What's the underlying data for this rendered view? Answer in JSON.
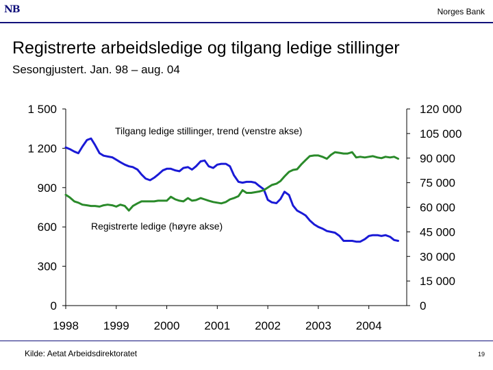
{
  "header": {
    "logo": "NB",
    "bank_name": "Norges Bank"
  },
  "colors": {
    "brand": "#10107a",
    "registered_series": "#1a1ad6",
    "vacancies_series": "#2a8a2a"
  },
  "chart_data": {
    "type": "line",
    "title": "Registrerte arbeidsledige og tilgang ledige stillinger",
    "subtitle": "Sesongjustert. Jan. 98 – aug. 04",
    "x_tick_labels": [
      "1998",
      "1999",
      "2000",
      "2001",
      "2002",
      "2003",
      "2004"
    ],
    "xlim": [
      1998.0,
      2004.75
    ],
    "left_axis": {
      "ylim": [
        0,
        1500
      ],
      "tick_labels": [
        "1 500",
        "1 200",
        "900",
        "600",
        "300",
        "0"
      ],
      "tick_values": [
        1500,
        1200,
        900,
        600,
        300,
        0
      ]
    },
    "right_axis": {
      "ylim": [
        0,
        120000
      ],
      "tick_labels": [
        "120 000",
        "105 000",
        "90 000",
        "75 000",
        "60 000",
        "45 000",
        "30 000",
        "15 000",
        "0"
      ],
      "tick_values": [
        120000,
        105000,
        90000,
        75000,
        60000,
        45000,
        30000,
        15000,
        0
      ]
    },
    "grid": false,
    "annotations": [
      {
        "text": "Tilgang ledige stillinger, trend (venstre akse)",
        "series": "vacancies"
      },
      {
        "text": "Registrerte ledige (høyre akse)",
        "series": "registered"
      }
    ],
    "series": [
      {
        "id": "registered",
        "axis": "right",
        "color": "#1a1ad6",
        "x": [
          1998.0,
          1998.08,
          1998.17,
          1998.25,
          1998.33,
          1998.42,
          1998.5,
          1998.58,
          1998.67,
          1998.75,
          1998.83,
          1998.92,
          1999.0,
          1999.08,
          1999.17,
          1999.25,
          1999.33,
          1999.42,
          1999.5,
          1999.58,
          1999.67,
          1999.75,
          1999.83,
          1999.92,
          2000.0,
          2000.08,
          2000.17,
          2000.25,
          2000.33,
          2000.42,
          2000.5,
          2000.58,
          2000.67,
          2000.75,
          2000.83,
          2000.92,
          2001.0,
          2001.08,
          2001.17,
          2001.25,
          2001.33,
          2001.42,
          2001.5,
          2001.58,
          2001.67,
          2001.75,
          2001.83,
          2001.92,
          2002.0,
          2002.08,
          2002.17,
          2002.25,
          2002.33,
          2002.42,
          2002.5,
          2002.58,
          2002.67,
          2002.75,
          2002.83,
          2002.92,
          2003.0,
          2003.08,
          2003.17,
          2003.25,
          2003.33,
          2003.42,
          2003.5,
          2003.58,
          2003.67,
          2003.75,
          2003.83,
          2003.92,
          2004.0,
          2004.08,
          2004.17,
          2004.25,
          2004.33,
          2004.42,
          2004.5,
          2004.58
        ],
        "y": [
          96500,
          95500,
          94000,
          93000,
          97000,
          101000,
          102000,
          98000,
          93000,
          91500,
          91000,
          90500,
          89000,
          87500,
          86000,
          85000,
          84500,
          83000,
          80000,
          77500,
          76500,
          78000,
          80000,
          82500,
          83500,
          83500,
          82500,
          82000,
          84000,
          84500,
          83000,
          85000,
          88000,
          88500,
          85000,
          84000,
          86000,
          86500,
          86500,
          85000,
          79500,
          75500,
          75000,
          75500,
          75500,
          75000,
          73000,
          71000,
          64500,
          63000,
          62500,
          65000,
          69500,
          67500,
          61000,
          58000,
          56500,
          55000,
          52000,
          49500,
          48000,
          47000,
          45500,
          45000,
          44500,
          42500,
          39500,
          39500,
          39500,
          39000,
          39000,
          40500,
          42500,
          43000,
          43000,
          42500,
          43000,
          42000,
          40000,
          39500
        ]
      },
      {
        "id": "vacancies",
        "axis": "left",
        "color": "#2a8a2a",
        "x": [
          1998.0,
          1998.08,
          1998.17,
          1998.25,
          1998.33,
          1998.42,
          1998.5,
          1998.58,
          1998.67,
          1998.75,
          1998.83,
          1998.92,
          1999.0,
          1999.08,
          1999.17,
          1999.25,
          1999.33,
          1999.42,
          1999.5,
          1999.58,
          1999.67,
          1999.75,
          1999.83,
          1999.92,
          2000.0,
          2000.08,
          2000.17,
          2000.25,
          2000.33,
          2000.42,
          2000.5,
          2000.58,
          2000.67,
          2000.75,
          2000.83,
          2000.92,
          2001.0,
          2001.08,
          2001.17,
          2001.25,
          2001.33,
          2001.42,
          2001.5,
          2001.58,
          2001.67,
          2001.75,
          2001.83,
          2001.92,
          2002.0,
          2002.08,
          2002.17,
          2002.25,
          2002.33,
          2002.42,
          2002.5,
          2002.58,
          2002.67,
          2002.75,
          2002.83,
          2002.92,
          2003.0,
          2003.08,
          2003.17,
          2003.25,
          2003.33,
          2003.42,
          2003.5,
          2003.58,
          2003.67,
          2003.75,
          2003.83,
          2003.92,
          2004.0,
          2004.08,
          2004.17,
          2004.25,
          2004.33,
          2004.42,
          2004.5,
          2004.58
        ],
        "y": [
          845,
          825,
          795,
          785,
          770,
          765,
          760,
          760,
          755,
          765,
          770,
          765,
          755,
          770,
          760,
          725,
          760,
          780,
          795,
          795,
          795,
          795,
          800,
          800,
          800,
          830,
          810,
          800,
          795,
          820,
          800,
          805,
          820,
          810,
          800,
          790,
          785,
          780,
          790,
          810,
          820,
          835,
          880,
          860,
          860,
          865,
          870,
          880,
          900,
          920,
          930,
          950,
          985,
          1020,
          1035,
          1040,
          1080,
          1110,
          1140,
          1145,
          1145,
          1135,
          1120,
          1150,
          1170,
          1165,
          1160,
          1160,
          1170,
          1130,
          1135,
          1130,
          1135,
          1140,
          1130,
          1125,
          1135,
          1130,
          1135,
          1120
        ]
      }
    ]
  },
  "footer": {
    "source": "Kilde: Aetat Arbeidsdirektoratet",
    "page_number": "19"
  }
}
